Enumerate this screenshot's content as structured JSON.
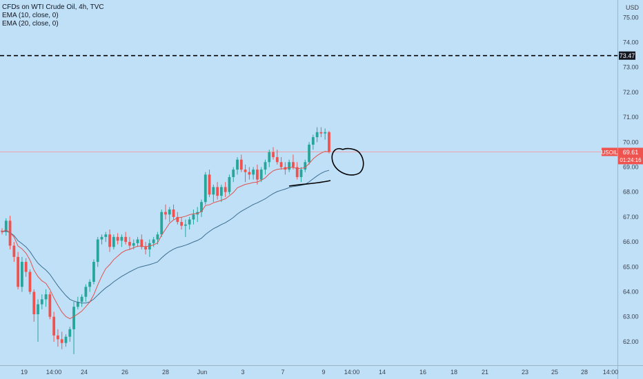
{
  "legend": {
    "title": "CFDs on WTI Crude Oil, 4h, TVC",
    "ema10": "EMA (10, close, 0)",
    "ema20": "EMA (20, close, 0)"
  },
  "currency": "USD",
  "symbol_tag": "USOIL",
  "price_tag": "69.61",
  "countdown": "01:24:16",
  "level_tag": "73.47",
  "colors": {
    "background": "#bfe0f7",
    "up": "#26a69a",
    "down": "#ef5350",
    "ema10": "#e0524f",
    "ema20": "#3b6e8f",
    "level": "#000000",
    "price_line": "#f0a0a6",
    "drawing": "#000000"
  },
  "chart_data": {
    "type": "candlestick",
    "timeframe": "4h",
    "y_axis_ticks": [
      "75.00",
      "74.00",
      "73.00",
      "72.00",
      "71.00",
      "70.00",
      "69.00",
      "68.00",
      "67.00",
      "66.00",
      "65.00",
      "64.00",
      "63.00",
      "62.00"
    ],
    "ylim": [
      61.2,
      75.3
    ],
    "x_axis_ticks": [
      "19",
      "14:00",
      "24",
      "26",
      "28",
      "Jun",
      "3",
      "7",
      "9",
      "14:00",
      "14",
      "16",
      "18",
      "21",
      "23",
      "25",
      "28",
      "14:00"
    ],
    "horizontal_level": 73.47,
    "last_price": 69.61,
    "series": [
      {
        "name": "USOIL",
        "candles": [
          [
            66.45,
            66.55,
            66.3,
            66.4
          ],
          [
            66.4,
            66.95,
            66.25,
            66.85
          ],
          [
            66.85,
            67.05,
            65.7,
            65.85
          ],
          [
            65.85,
            66.0,
            65.2,
            65.4
          ],
          [
            65.4,
            65.6,
            64.1,
            64.2
          ],
          [
            64.2,
            65.4,
            64.0,
            65.2
          ],
          [
            65.2,
            65.35,
            64.6,
            64.8
          ],
          [
            64.8,
            64.9,
            63.9,
            64.0
          ],
          [
            64.0,
            64.1,
            62.8,
            63.1
          ],
          [
            63.1,
            63.7,
            62.0,
            63.5
          ],
          [
            63.5,
            63.9,
            63.3,
            63.7
          ],
          [
            63.7,
            64.1,
            63.4,
            63.9
          ],
          [
            63.9,
            64.0,
            62.9,
            63.0
          ],
          [
            63.0,
            63.2,
            62.0,
            62.25
          ],
          [
            62.25,
            62.5,
            61.8,
            62.1
          ],
          [
            62.1,
            62.4,
            61.7,
            61.95
          ],
          [
            61.95,
            62.3,
            61.8,
            62.2
          ],
          [
            62.2,
            62.6,
            62.0,
            62.5
          ],
          [
            62.5,
            63.6,
            61.5,
            63.4
          ],
          [
            63.4,
            63.8,
            63.3,
            63.6
          ],
          [
            63.6,
            63.9,
            63.4,
            63.8
          ],
          [
            63.8,
            64.3,
            63.6,
            64.2
          ],
          [
            64.2,
            64.5,
            64.0,
            64.4
          ],
          [
            64.4,
            65.3,
            64.3,
            65.2
          ],
          [
            65.2,
            66.2,
            65.0,
            66.1
          ],
          [
            66.1,
            66.3,
            65.9,
            66.2
          ],
          [
            66.2,
            66.4,
            66.0,
            66.3
          ],
          [
            66.3,
            66.5,
            65.6,
            65.8
          ],
          [
            65.8,
            66.3,
            65.7,
            66.2
          ],
          [
            66.2,
            66.35,
            65.9,
            66.05
          ],
          [
            66.05,
            66.3,
            65.8,
            66.2
          ],
          [
            66.2,
            66.4,
            65.9,
            66.0
          ],
          [
            66.0,
            66.2,
            65.7,
            65.85
          ],
          [
            65.85,
            66.1,
            65.7,
            65.95
          ],
          [
            65.95,
            66.2,
            65.8,
            66.1
          ],
          [
            66.1,
            66.3,
            65.7,
            65.8
          ],
          [
            65.8,
            66.0,
            65.5,
            65.7
          ],
          [
            65.7,
            66.1,
            65.4,
            65.95
          ],
          [
            65.95,
            66.2,
            65.8,
            66.1
          ],
          [
            66.1,
            66.4,
            65.9,
            66.3
          ],
          [
            66.3,
            67.3,
            66.2,
            67.2
          ],
          [
            67.2,
            67.5,
            66.9,
            67.1
          ],
          [
            67.1,
            67.4,
            66.8,
            67.3
          ],
          [
            67.3,
            67.5,
            66.9,
            67.0
          ],
          [
            67.0,
            67.2,
            66.7,
            66.8
          ],
          [
            66.8,
            67.0,
            66.5,
            66.65
          ],
          [
            66.65,
            66.9,
            66.2,
            66.7
          ],
          [
            66.7,
            67.0,
            66.5,
            66.9
          ],
          [
            66.9,
            67.3,
            66.7,
            67.1
          ],
          [
            67.1,
            67.4,
            66.8,
            67.2
          ],
          [
            67.2,
            67.7,
            67.0,
            67.6
          ],
          [
            67.6,
            68.8,
            67.5,
            68.7
          ],
          [
            68.7,
            68.9,
            67.8,
            67.9
          ],
          [
            67.9,
            68.3,
            67.6,
            68.2
          ],
          [
            68.2,
            68.4,
            67.7,
            67.85
          ],
          [
            67.85,
            68.3,
            67.6,
            68.2
          ],
          [
            68.2,
            68.4,
            67.8,
            68.0
          ],
          [
            68.0,
            68.7,
            67.9,
            68.6
          ],
          [
            68.6,
            69.0,
            68.4,
            68.9
          ],
          [
            68.9,
            69.4,
            68.7,
            69.3
          ],
          [
            69.3,
            69.5,
            68.8,
            68.9
          ],
          [
            68.9,
            69.1,
            68.4,
            68.8
          ],
          [
            68.8,
            69.0,
            68.5,
            68.7
          ],
          [
            68.7,
            69.0,
            68.5,
            68.9
          ],
          [
            68.9,
            69.1,
            68.3,
            68.5
          ],
          [
            68.5,
            69.0,
            68.4,
            68.9
          ],
          [
            68.9,
            69.3,
            68.7,
            69.2
          ],
          [
            69.2,
            69.7,
            69.0,
            69.6
          ],
          [
            69.6,
            69.8,
            69.3,
            69.4
          ],
          [
            69.4,
            69.7,
            69.1,
            69.2
          ],
          [
            69.2,
            69.4,
            68.9,
            69.0
          ],
          [
            69.0,
            69.2,
            68.7,
            68.9
          ],
          [
            68.9,
            69.3,
            68.8,
            69.2
          ],
          [
            69.2,
            69.5,
            68.9,
            69.0
          ],
          [
            69.0,
            69.2,
            68.5,
            68.6
          ],
          [
            68.6,
            69.0,
            68.4,
            68.9
          ],
          [
            68.9,
            69.3,
            68.8,
            69.2
          ],
          [
            69.2,
            70.0,
            69.1,
            69.9
          ],
          [
            69.9,
            70.3,
            69.7,
            70.2
          ],
          [
            70.2,
            70.6,
            70.0,
            70.4
          ],
          [
            70.4,
            70.6,
            70.2,
            70.35
          ],
          [
            70.35,
            70.55,
            70.1,
            70.4
          ],
          [
            70.4,
            70.45,
            69.55,
            69.61
          ]
        ]
      },
      {
        "name": "EMA 10",
        "values": [
          66.4,
          66.48,
          66.37,
          66.2,
          65.84,
          65.72,
          65.55,
          65.27,
          64.87,
          64.61,
          64.44,
          64.34,
          64.09,
          63.76,
          63.46,
          63.19,
          63.01,
          62.92,
          63.01,
          63.11,
          63.23,
          63.41,
          63.59,
          63.88,
          64.28,
          64.63,
          64.93,
          65.09,
          65.29,
          65.43,
          65.57,
          65.66,
          65.7,
          65.77,
          65.83,
          65.83,
          65.81,
          65.84,
          65.88,
          65.96,
          66.27,
          66.51,
          66.75,
          66.88,
          66.96,
          66.99,
          67.03,
          67.09,
          67.13,
          67.14,
          67.22,
          67.46,
          67.49,
          67.57,
          67.62,
          67.67,
          67.73,
          67.85,
          67.98,
          68.17,
          68.24,
          68.31,
          68.34,
          68.38,
          68.4,
          68.47,
          68.57,
          68.73,
          68.85,
          68.91,
          68.93,
          68.94,
          68.99,
          68.99,
          68.94,
          68.95,
          68.98,
          69.14,
          69.33,
          69.46,
          69.56,
          69.63,
          69.61
        ]
      },
      {
        "name": "EMA 20",
        "values": [
          66.4,
          66.44,
          66.37,
          66.26,
          66.05,
          65.93,
          65.8,
          65.61,
          65.37,
          65.15,
          65.0,
          64.87,
          64.7,
          64.47,
          64.24,
          64.04,
          63.85,
          63.7,
          63.63,
          63.58,
          63.55,
          63.55,
          63.6,
          63.71,
          63.87,
          64.02,
          64.16,
          64.27,
          64.4,
          64.51,
          64.62,
          64.71,
          64.8,
          64.88,
          64.96,
          65.01,
          65.05,
          65.09,
          65.14,
          65.2,
          65.36,
          65.5,
          65.62,
          65.71,
          65.78,
          65.82,
          65.87,
          65.93,
          66.0,
          66.06,
          66.15,
          66.3,
          66.42,
          66.53,
          66.61,
          66.7,
          66.77,
          66.87,
          66.98,
          67.12,
          67.23,
          67.32,
          67.41,
          67.5,
          67.57,
          67.65,
          67.73,
          67.84,
          67.94,
          68.02,
          68.07,
          68.12,
          68.18,
          68.22,
          68.24,
          68.27,
          68.31,
          68.41,
          68.53,
          68.65,
          68.75,
          68.83,
          68.87
        ]
      }
    ]
  }
}
